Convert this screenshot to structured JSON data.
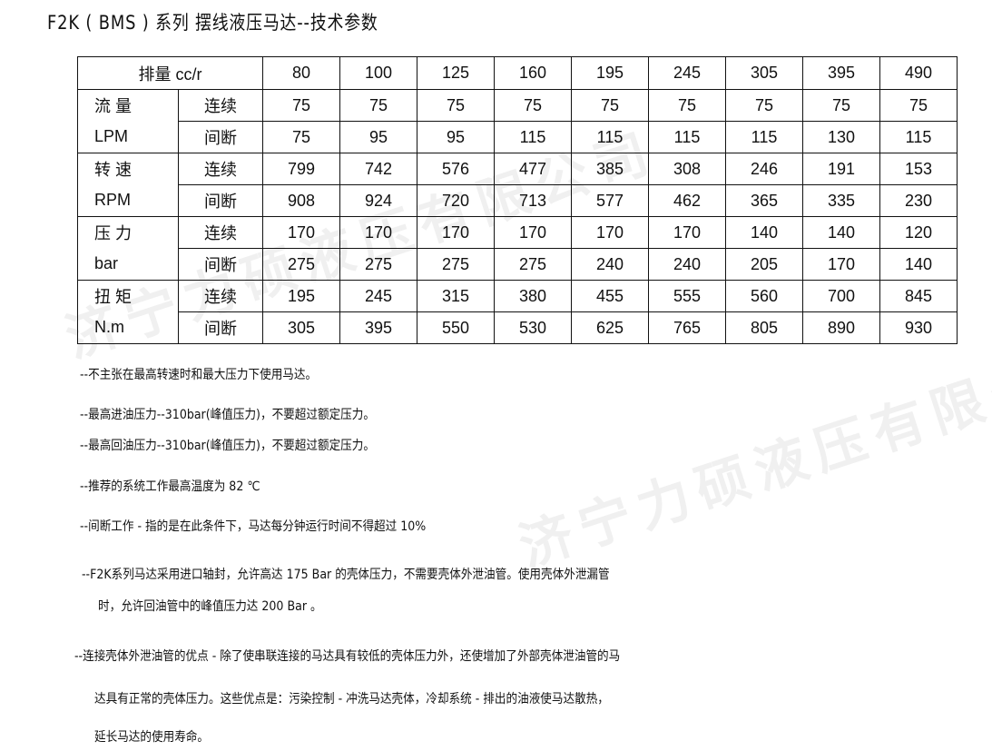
{
  "title": "F2K ( BMS ) 系列 摆线液压马达--技术参数",
  "watermark": "济宁力硕液压有限公司",
  "table": {
    "header_label": "排量 cc/r",
    "displacements": [
      "80",
      "100",
      "125",
      "160",
      "195",
      "245",
      "305",
      "395",
      "490"
    ],
    "groups": [
      {
        "name": "流 量",
        "unit": "LPM",
        "rows": [
          {
            "label": "连续",
            "values": [
              "75",
              "75",
              "75",
              "75",
              "75",
              "75",
              "75",
              "75",
              "75"
            ]
          },
          {
            "label": "间断",
            "values": [
              "75",
              "95",
              "95",
              "115",
              "115",
              "115",
              "115",
              "130",
              "115"
            ]
          }
        ]
      },
      {
        "name": "转 速",
        "unit": "RPM",
        "rows": [
          {
            "label": "连续",
            "values": [
              "799",
              "742",
              "576",
              "477",
              "385",
              "308",
              "246",
              "191",
              "153"
            ]
          },
          {
            "label": "间断",
            "values": [
              "908",
              "924",
              "720",
              "713",
              "577",
              "462",
              "365",
              "335",
              "230"
            ]
          }
        ]
      },
      {
        "name": "压 力",
        "unit": "bar",
        "rows": [
          {
            "label": "连续",
            "values": [
              "170",
              "170",
              "170",
              "170",
              "170",
              "170",
              "140",
              "140",
              "120"
            ]
          },
          {
            "label": "间断",
            "values": [
              "275",
              "275",
              "275",
              "275",
              "240",
              "240",
              "205",
              "170",
              "140"
            ]
          }
        ]
      },
      {
        "name": "扭 矩",
        "unit": "N.m",
        "rows": [
          {
            "label": "连续",
            "values": [
              "195",
              "245",
              "315",
              "380",
              "455",
              "555",
              "560",
              "700",
              "845"
            ]
          },
          {
            "label": "间断",
            "values": [
              "305",
              "395",
              "550",
              "530",
              "625",
              "765",
              "805",
              "890",
              "930"
            ]
          }
        ]
      }
    ]
  },
  "notes": [
    "--不主张在最高转速时和最大压力下使用马达。",
    "--最高进油压力--310bar(峰值压力)，不要超过额定压力。",
    "--最高回油压力--310bar(峰值压力)，不要超过额定压力。",
    "--推荐的系统工作最高温度为 82 ℃",
    "--间断工作 - 指的是在此条件下，马达每分钟运行时间不得超过 10%",
    "--F2K系列马达采用进口轴封，允许高达 175 Bar 的壳体压力，不需要壳体外泄油管。使用壳体外泄漏管",
    "时，允许回油管中的峰值压力达 200 Bar 。",
    "--连接壳体外泄油管的优点 - 除了使串联连接的马达具有较低的壳体压力外，还使增加了外部壳体泄油管的马",
    "达具有正常的壳体压力。这些优点是：污染控制 - 冲洗马达壳体，冷却系统 - 排出的油液使马达散热，",
    "延长马达的使用寿命。"
  ]
}
